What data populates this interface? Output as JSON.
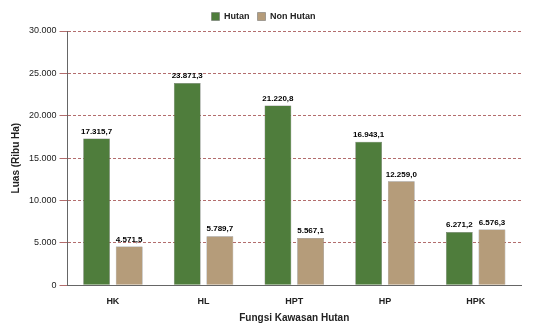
{
  "chart_data": {
    "type": "bar",
    "x_label": "Fungsi Kawasan Hutan",
    "y_label": "Luas (Ribu Ha)",
    "categories": [
      "HK",
      "HL",
      "HPT",
      "HP",
      "HPK"
    ],
    "series": [
      {
        "name": "Hutan",
        "color": "#4f7d3c",
        "values": [
          17315.7,
          23871.3,
          21220.8,
          16943.1,
          6271.2
        ],
        "value_labels": [
          "17.315,7",
          "23.871,3",
          "21.220,8",
          "16.943,1",
          "6.271,2"
        ]
      },
      {
        "name": "Non Hutan",
        "color": "#b59c7a",
        "values": [
          4571.5,
          5789.7,
          5567.1,
          12259.0,
          6576.3
        ],
        "value_labels": [
          "4.571,5",
          "5.789,7",
          "5.567,1",
          "12.259,0",
          "6.576,3"
        ]
      }
    ],
    "ylim": [
      0,
      30000
    ],
    "yticks": [
      0,
      {
        "value": 5000,
        "label": "5.000"
      },
      {
        "value": 10000,
        "label": "10.000"
      },
      {
        "value": 15000,
        "label": "15.000"
      },
      {
        "value": 20000,
        "label": "20.000"
      },
      {
        "value": 25000,
        "label": "25.000"
      },
      {
        "value": 30000,
        "label": "30.000"
      }
    ],
    "grid": true,
    "legend": "top",
    "data_labels": true
  }
}
